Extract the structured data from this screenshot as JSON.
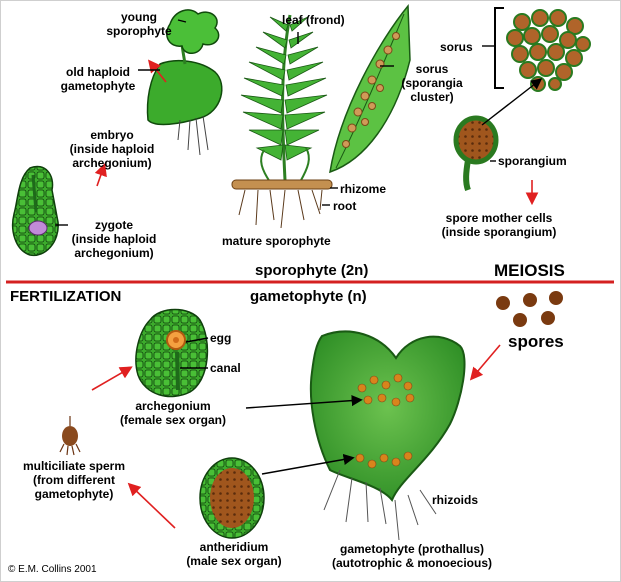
{
  "labels": {
    "young_sporophyte": [
      "young",
      "sporophyte"
    ],
    "old_gametophyte": [
      "old haploid",
      "gametophyte"
    ],
    "embryo": [
      "embryo",
      "(inside haploid",
      "archegonium)"
    ],
    "zygote": [
      "zygote",
      "(inside haploid",
      "archegonium)"
    ],
    "leaf": "leaf (frond)",
    "sorus_cluster": [
      "sorus",
      "(sporangia",
      "cluster)"
    ],
    "sorus": "sorus",
    "sporangium": "sporangium",
    "spore_mother": [
      "spore mother cells",
      "(inside sporangium)"
    ],
    "rhizome": "rhizome",
    "root": "root",
    "mature_sporophyte": "mature sporophyte",
    "sporophyte_2n": "sporophyte (2n)",
    "meiosis": "MEIOSIS",
    "fertilization": "FERTILIZATION",
    "gametophyte_n": "gametophyte (n)",
    "egg": "egg",
    "canal": "canal",
    "spores": "spores",
    "archegonium": [
      "archegonium",
      "(female sex organ)"
    ],
    "sperm": [
      "multiciliate sperm",
      "(from different",
      "gametophyte)"
    ],
    "rhizoids": "rhizoids",
    "antheridium": [
      "antheridium",
      "(male sex organ)"
    ],
    "prothallus": [
      "gametophyte (prothallus)",
      "(autotrophic & monoecious)"
    ],
    "copyright": "© E.M. Collins 2001"
  },
  "colors": {
    "divider": "#d42020",
    "arrow_red": "#e02020",
    "arrow_black": "#000000",
    "leaf_green": "#3cab2c",
    "dark_green": "#1e6a1a",
    "brown": "#8a4a1e",
    "orange": "#d8841c"
  }
}
